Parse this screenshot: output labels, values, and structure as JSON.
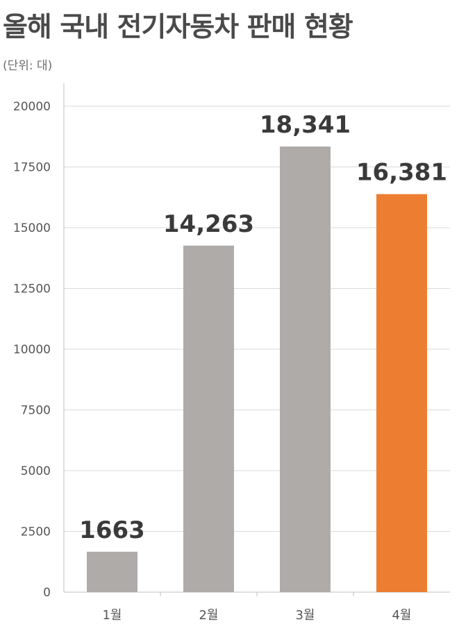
{
  "header": {
    "title": "올해 국내 전기자동차 판매 현황",
    "unit_note": "(단위: 대)"
  },
  "chart_data": {
    "type": "bar",
    "title": "올해 국내 전기자동차 판매 현황",
    "xlabel": "",
    "ylabel": "",
    "categories": [
      "1월",
      "2월",
      "3월",
      "4월"
    ],
    "values": [
      1663,
      14263,
      18341,
      16381
    ],
    "data_labels": [
      "1663",
      "14,263",
      "18,341",
      "16,381"
    ],
    "ylim": [
      0,
      20000
    ],
    "yticks": [
      0,
      2500,
      5000,
      7500,
      10000,
      12500,
      15000,
      17500,
      20000
    ],
    "grid": true,
    "legend": "none",
    "colors": {
      "default_bar": "#aeaba9",
      "highlight_bar": "#ed7d31",
      "highlight_index": 3,
      "gridline": "#d9d9d9",
      "axis": "#bfbfbf"
    }
  }
}
